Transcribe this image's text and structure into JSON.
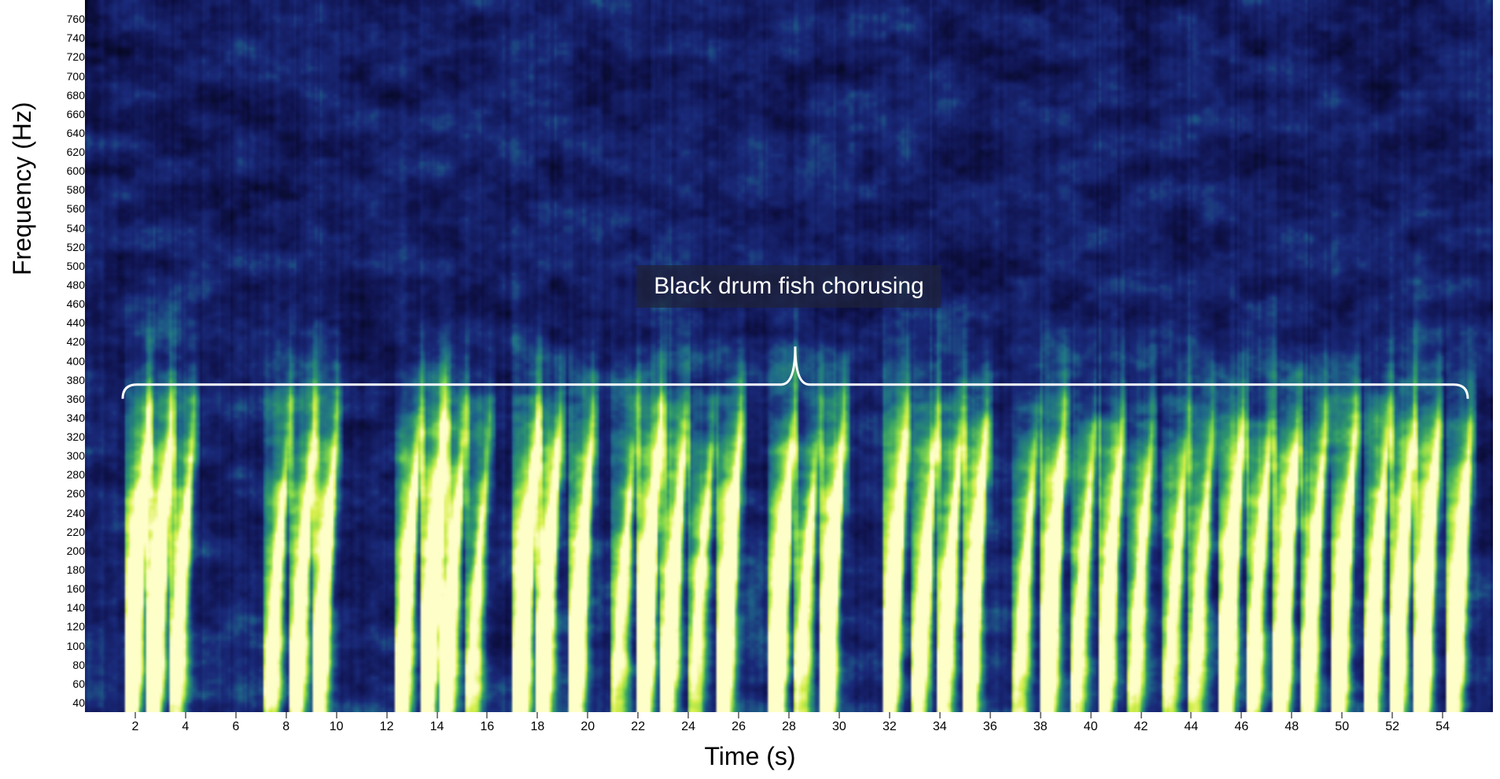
{
  "spectrogram": {
    "type": "spectrogram",
    "x_axis": {
      "label": "Time (s)",
      "min": 0,
      "max": 56,
      "ticks": [
        2,
        4,
        6,
        8,
        10,
        12,
        14,
        16,
        18,
        20,
        22,
        24,
        26,
        28,
        30,
        32,
        34,
        36,
        38,
        40,
        42,
        44,
        46,
        48,
        50,
        52,
        54
      ],
      "label_fontsize": 32,
      "tick_fontsize": 16
    },
    "y_axis": {
      "label": "Frequency (Hz)",
      "min": 30,
      "max": 780,
      "ticks": [
        40,
        60,
        80,
        100,
        120,
        140,
        160,
        180,
        200,
        220,
        240,
        260,
        280,
        300,
        320,
        340,
        360,
        380,
        400,
        420,
        440,
        460,
        480,
        500,
        520,
        540,
        560,
        580,
        600,
        620,
        640,
        660,
        680,
        700,
        720,
        740,
        760
      ],
      "label_fontsize": 32,
      "tick_fontsize": 14
    },
    "colormap": {
      "name": "viridis-like",
      "stops": [
        {
          "v": 0.0,
          "color": "#04061a"
        },
        {
          "v": 0.15,
          "color": "#101450"
        },
        {
          "v": 0.3,
          "color": "#1a2a7a"
        },
        {
          "v": 0.45,
          "color": "#1f6a8a"
        },
        {
          "v": 0.6,
          "color": "#2f9a6a"
        },
        {
          "v": 0.75,
          "color": "#7fd84c"
        },
        {
          "v": 0.88,
          "color": "#d6ef4a"
        },
        {
          "v": 1.0,
          "color": "#fefec8"
        }
      ]
    },
    "background_intensity": {
      "mean": 0.22,
      "noise": 0.18
    },
    "chorus_calls": {
      "description": "repeated upsweep pulses",
      "freq_start_hz": 60,
      "freq_peak_hz": 320,
      "energy_band_hz": [
        50,
        340
      ],
      "core_band_hz": [
        60,
        200
      ],
      "duration_s": 0.9,
      "onset_times_s": [
        1.6,
        2.5,
        3.4,
        7.2,
        8.2,
        9.1,
        12.4,
        13.4,
        14.2,
        15.2,
        17.1,
        18.0,
        19.3,
        21.0,
        22.0,
        23.0,
        24.1,
        25.2,
        27.3,
        28.3,
        29.3,
        31.8,
        33.0,
        34.0,
        35.0,
        37.0,
        38.1,
        39.3,
        40.4,
        41.6,
        43.0,
        44.0,
        45.2,
        46.3,
        47.4,
        48.5,
        49.7,
        51.0,
        52.0,
        53.0,
        54.3
      ]
    },
    "annotation": {
      "text": "Black drum fish chorusing",
      "box_bg": "rgba(30,35,55,0.72)",
      "text_color": "#ffffff",
      "fontsize": 30,
      "box_center_time_s": 28,
      "box_freq_hz": 480,
      "brace": {
        "color": "#ffffff",
        "stroke_width": 3,
        "span_time_s": [
          1.5,
          55
        ],
        "freq_hz": 375,
        "tip_freq_hz": 415
      }
    },
    "plot_bg": "#0a0f2e"
  }
}
